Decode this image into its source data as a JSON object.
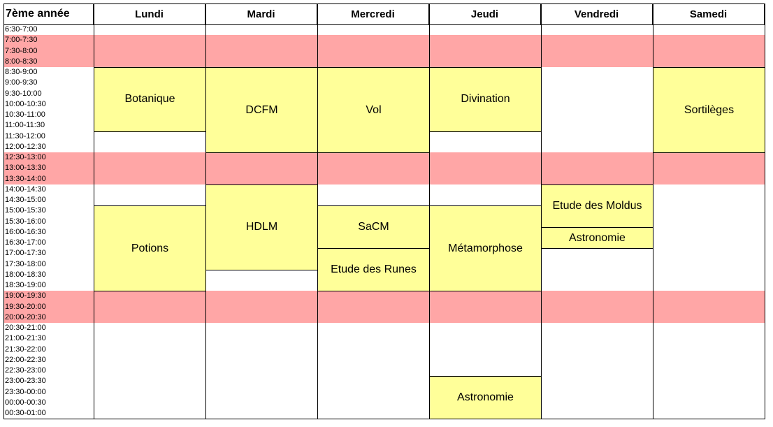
{
  "header": {
    "title": "7ème année",
    "days": [
      "Lundi",
      "Mardi",
      "Mercredi",
      "Jeudi",
      "Vendredi",
      "Samedi"
    ]
  },
  "slots": [
    "6:30-7:00",
    "7:00-7:30",
    "7:30-8:00",
    "8:00-8:30",
    "8:30-9:00",
    "9:00-9:30",
    "9:30-10:00",
    "10:00-10:30",
    "10:30-11:00",
    "11:00-11:30",
    "11:30-12:00",
    "12:00-12:30",
    "12:30-13:00",
    "13:00-13:30",
    "13:30-14:00",
    "14:00-14:30",
    "14:30-15:00",
    "15:00-15:30",
    "15:30-16:00",
    "16:00-16:30",
    "16:30-17:00",
    "17:00-17:30",
    "17:30-18:00",
    "18:00-18:30",
    "18:30-19:00",
    "19:00-19:30",
    "19:30-20:00",
    "20:00-20:30",
    "20:30-21:00",
    "21:00-21:30",
    "21:30-22:00",
    "22:00-22:30",
    "22:30-23:00",
    "23:00-23:30",
    "23:30-00:00",
    "00:00-00:30",
    "00:30-01:00"
  ],
  "breaks": [
    {
      "start": "7:00-7:30",
      "end": "8:00-8:30"
    },
    {
      "start": "12:30-13:00",
      "end": "13:30-14:00"
    },
    {
      "start": "19:00-19:30",
      "end": "20:00-20:30"
    }
  ],
  "courses": [
    {
      "day": "Lundi",
      "name": "Botanique",
      "start": "8:30-9:00",
      "end": "11:00-11:30"
    },
    {
      "day": "Lundi",
      "name": "Potions",
      "start": "15:00-15:30",
      "end": "18:30-19:00"
    },
    {
      "day": "Mardi",
      "name": "DCFM",
      "start": "8:30-9:00",
      "end": "12:00-12:30"
    },
    {
      "day": "Mardi",
      "name": "HDLM",
      "start": "14:00-14:30",
      "end": "17:30-18:00"
    },
    {
      "day": "Mercredi",
      "name": "Vol",
      "start": "8:30-9:00",
      "end": "12:00-12:30"
    },
    {
      "day": "Mercredi",
      "name": "SaCM",
      "start": "15:00-15:30",
      "end": "16:30-17:00"
    },
    {
      "day": "Mercredi",
      "name": "Etude des Runes",
      "start": "17:00-17:30",
      "end": "18:30-19:00"
    },
    {
      "day": "Jeudi",
      "name": "Divination",
      "start": "8:30-9:00",
      "end": "11:00-11:30"
    },
    {
      "day": "Jeudi",
      "name": "Métamorphose",
      "start": "15:00-15:30",
      "end": "18:30-19:00"
    },
    {
      "day": "Jeudi",
      "name": "Astronomie",
      "start": "23:00-23:30",
      "end": "00:30-01:00"
    },
    {
      "day": "Vendredi",
      "name": "Etude des Moldus",
      "start": "14:00-14:30",
      "end": "15:30-16:00"
    },
    {
      "day": "Vendredi",
      "name": "Astronomie",
      "start": "16:00-16:30",
      "end": "16:30-17:00"
    },
    {
      "day": "Samedi",
      "name": "Sortilèges",
      "start": "8:30-9:00",
      "end": "12:00-12:30"
    }
  ]
}
